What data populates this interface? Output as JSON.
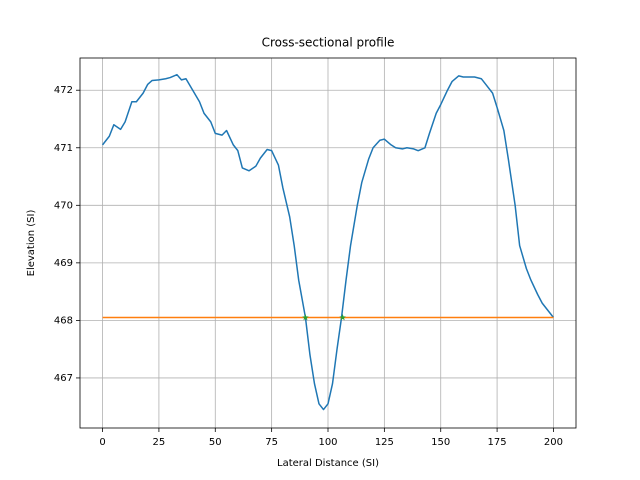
{
  "chart_data": {
    "type": "line",
    "title": "Cross-sectional profile",
    "xlabel": "Lateral Distance (SI)",
    "ylabel": "Elevation (SI)",
    "xlim": [
      -10,
      210
    ],
    "ylim": [
      466.13,
      472.56
    ],
    "xticks": [
      0,
      25,
      50,
      75,
      100,
      125,
      150,
      175,
      200
    ],
    "yticks": [
      467,
      468,
      469,
      470,
      471,
      472
    ],
    "grid": true,
    "series": [
      {
        "color": "#1f77b4",
        "line": true,
        "x": [
          0,
          3,
          5,
          8,
          10,
          13,
          15,
          18,
          20,
          22,
          25,
          28,
          30,
          33,
          35,
          37,
          40,
          43,
          45,
          48,
          50,
          53,
          55,
          58,
          60,
          62,
          65,
          68,
          70,
          73,
          75,
          78,
          80,
          83,
          85,
          87,
          90,
          92,
          94,
          96,
          98,
          100,
          102,
          104,
          106,
          108,
          110,
          113,
          115,
          118,
          120,
          123,
          125,
          128,
          130,
          133,
          135,
          138,
          140,
          143,
          145,
          148,
          150,
          153,
          155,
          158,
          160,
          163,
          165,
          168,
          170,
          173,
          175,
          178,
          180,
          183,
          185,
          188,
          190,
          193,
          195,
          198,
          200
        ],
        "values": [
          471.05,
          471.2,
          471.4,
          471.32,
          471.45,
          471.8,
          471.8,
          471.95,
          472.1,
          472.17,
          472.18,
          472.2,
          472.22,
          472.27,
          472.18,
          472.2,
          472.0,
          471.8,
          471.6,
          471.45,
          471.25,
          471.22,
          471.3,
          471.05,
          470.95,
          470.65,
          470.6,
          470.68,
          470.82,
          470.97,
          470.95,
          470.7,
          470.3,
          469.8,
          469.3,
          468.7,
          468.05,
          467.4,
          466.9,
          466.55,
          466.45,
          466.55,
          466.9,
          467.5,
          468.05,
          468.7,
          469.3,
          470.0,
          470.4,
          470.8,
          471.0,
          471.13,
          471.15,
          471.05,
          471.0,
          470.98,
          471.0,
          470.98,
          470.95,
          471.0,
          471.25,
          471.6,
          471.75,
          472.0,
          472.15,
          472.25,
          472.23,
          472.23,
          472.23,
          472.2,
          472.1,
          471.95,
          471.7,
          471.3,
          470.8,
          470.0,
          469.3,
          468.9,
          468.7,
          468.45,
          468.3,
          468.15,
          468.05
        ]
      },
      {
        "color": "#ff7f0e",
        "line": true,
        "x": [
          0,
          200
        ],
        "values": [
          468.05,
          468.05
        ]
      },
      {
        "color": "#2ca02c",
        "line": false,
        "marker": "star",
        "x": [
          90,
          106.5
        ],
        "values": [
          468.05,
          468.05
        ]
      }
    ]
  }
}
